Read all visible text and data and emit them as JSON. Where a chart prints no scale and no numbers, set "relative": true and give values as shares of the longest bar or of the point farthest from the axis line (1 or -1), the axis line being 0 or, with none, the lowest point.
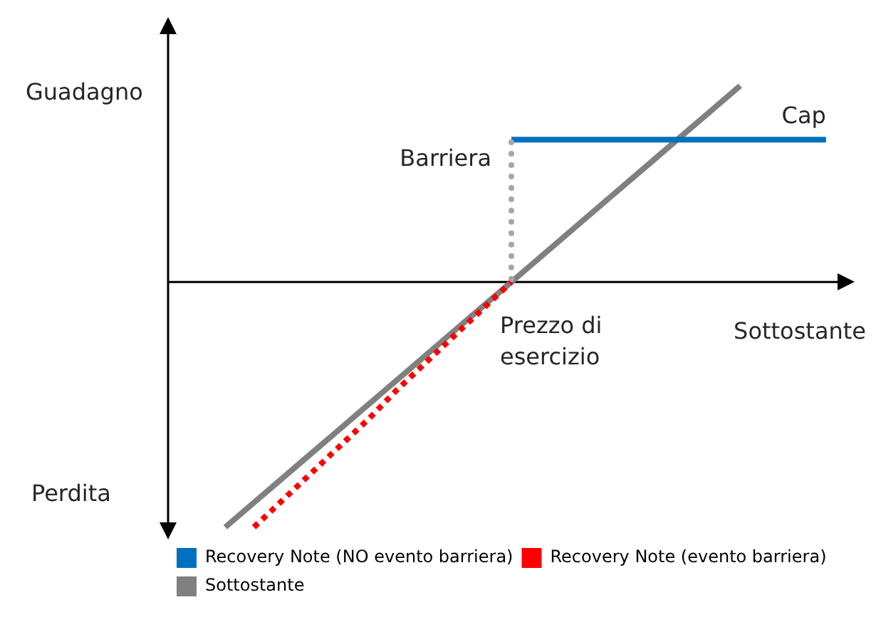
{
  "chart_data": {
    "type": "line",
    "relative": true,
    "xlabel": "Sottostante",
    "legend": "bottom",
    "marker": "none",
    "categories": [
      null,
      null,
      null,
      null,
      null,
      null,
      null,
      null,
      null,
      null,
      null,
      null,
      null,
      null,
      null,
      null,
      null,
      null,
      null,
      null,
      null,
      null,
      null,
      null,
      null
    ],
    "series": [
      {
        "name": "Recovery Note (NO evento barriera)",
        "color": "#0070c0",
        "values": [
          null,
          null,
          null,
          null,
          null,
          null,
          null,
          null,
          null,
          null,
          null,
          null,
          0.58,
          0.58,
          0.58,
          0.58,
          0.58,
          0.58,
          0.58,
          0.58,
          0.58,
          0.58,
          0.58,
          0.58,
          null
        ]
      },
      {
        "name": "Recovery Note (evento barriera)",
        "color": "#ff0000",
        "line_style": "dotted",
        "values": [
          null,
          null,
          null,
          -1,
          -0.89,
          -0.78,
          -0.67,
          -0.56,
          -0.44,
          -0.33,
          -0.22,
          -0.11,
          0,
          null,
          null,
          null,
          null,
          null,
          null,
          null,
          null,
          null,
          null,
          null,
          null
        ]
      },
      {
        "name": "Sottostante",
        "color": "#808080",
        "values": [
          null,
          null,
          -1,
          -0.9,
          -0.8,
          -0.7,
          -0.6,
          -0.5,
          -0.4,
          -0.3,
          -0.2,
          -0.1,
          0,
          0.1,
          0.2,
          0.3,
          0.4,
          0.5,
          0.6,
          0.7,
          0.8,
          null,
          null,
          null,
          null
        ]
      }
    ],
    "annotations": [
      "Guadagno",
      "Perdita",
      "Cap",
      "Barriera",
      "Prezzo di esercizio"
    ]
  }
}
